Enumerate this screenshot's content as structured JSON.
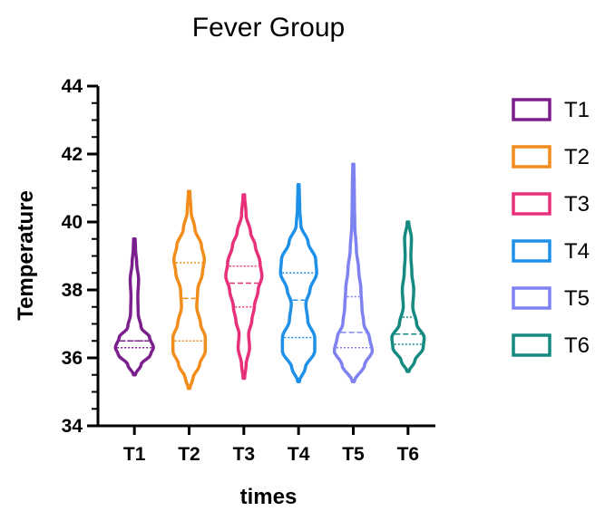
{
  "chart_data": {
    "type": "violin",
    "title": "Fever Group",
    "xlabel": "times",
    "ylabel": "Temperature",
    "ylim": [
      34,
      44
    ],
    "yticks": [
      34,
      36,
      38,
      40,
      42,
      44
    ],
    "y_minor_step": 0.5,
    "categories": [
      "T1",
      "T2",
      "T3",
      "T4",
      "T5",
      "T6"
    ],
    "legend_position": "right",
    "series": [
      {
        "name": "T1",
        "color": "#7B1F8C",
        "min": 35.5,
        "max": 39.5,
        "median": 36.5,
        "q1": 36.3,
        "q3": 36.5,
        "density": [
          [
            35.5,
            0.05
          ],
          [
            35.8,
            0.35
          ],
          [
            36.1,
            0.85
          ],
          [
            36.3,
            1.0
          ],
          [
            36.6,
            0.8
          ],
          [
            36.9,
            0.35
          ],
          [
            37.3,
            0.2
          ],
          [
            37.8,
            0.18
          ],
          [
            38.3,
            0.22
          ],
          [
            38.8,
            0.12
          ],
          [
            39.2,
            0.06
          ],
          [
            39.5,
            0.04
          ]
        ]
      },
      {
        "name": "T2",
        "color": "#F28C1A",
        "min": 35.1,
        "max": 40.9,
        "median": 37.75,
        "q1": 36.5,
        "q3": 38.8,
        "density": [
          [
            35.1,
            0.04
          ],
          [
            35.4,
            0.2
          ],
          [
            35.8,
            0.55
          ],
          [
            36.2,
            0.85
          ],
          [
            36.6,
            0.85
          ],
          [
            37.0,
            0.6
          ],
          [
            37.5,
            0.4
          ],
          [
            38.0,
            0.45
          ],
          [
            38.5,
            0.7
          ],
          [
            38.9,
            0.8
          ],
          [
            39.3,
            0.65
          ],
          [
            39.8,
            0.3
          ],
          [
            40.3,
            0.1
          ],
          [
            40.9,
            0.04
          ]
        ]
      },
      {
        "name": "T3",
        "color": "#E8307A",
        "min": 35.4,
        "max": 40.8,
        "median": 38.2,
        "q1": 37.5,
        "q3": 38.7,
        "density": [
          [
            35.4,
            0.04
          ],
          [
            35.8,
            0.12
          ],
          [
            36.3,
            0.3
          ],
          [
            36.7,
            0.25
          ],
          [
            37.1,
            0.42
          ],
          [
            37.5,
            0.55
          ],
          [
            38.0,
            0.75
          ],
          [
            38.4,
            0.95
          ],
          [
            38.8,
            0.85
          ],
          [
            39.3,
            0.6
          ],
          [
            39.7,
            0.35
          ],
          [
            40.2,
            0.12
          ],
          [
            40.8,
            0.04
          ]
        ]
      },
      {
        "name": "T4",
        "color": "#1E90E8",
        "min": 35.3,
        "max": 41.1,
        "median": 37.7,
        "q1": 36.6,
        "q3": 38.5,
        "density": [
          [
            35.3,
            0.04
          ],
          [
            35.7,
            0.35
          ],
          [
            36.2,
            0.85
          ],
          [
            36.6,
            0.85
          ],
          [
            37.1,
            0.48
          ],
          [
            37.6,
            0.38
          ],
          [
            38.0,
            0.6
          ],
          [
            38.5,
            0.95
          ],
          [
            38.9,
            0.9
          ],
          [
            39.4,
            0.5
          ],
          [
            39.9,
            0.12
          ],
          [
            40.4,
            0.06
          ],
          [
            41.1,
            0.03
          ]
        ]
      },
      {
        "name": "T5",
        "color": "#7E82F0",
        "min": 35.3,
        "max": 41.7,
        "median": 36.75,
        "q1": 36.3,
        "q3": 37.8,
        "density": [
          [
            35.3,
            0.05
          ],
          [
            35.8,
            0.6
          ],
          [
            36.2,
            1.0
          ],
          [
            36.6,
            0.85
          ],
          [
            37.0,
            0.55
          ],
          [
            37.5,
            0.45
          ],
          [
            38.0,
            0.4
          ],
          [
            38.6,
            0.28
          ],
          [
            39.2,
            0.16
          ],
          [
            39.9,
            0.08
          ],
          [
            40.5,
            0.06
          ],
          [
            41.0,
            0.05
          ],
          [
            41.7,
            0.03
          ]
        ]
      },
      {
        "name": "T6",
        "color": "#158A80",
        "min": 35.6,
        "max": 40.0,
        "median": 36.7,
        "q1": 36.4,
        "q3": 37.2,
        "density": [
          [
            35.6,
            0.05
          ],
          [
            35.9,
            0.35
          ],
          [
            36.3,
            0.8
          ],
          [
            36.6,
            0.85
          ],
          [
            37.0,
            0.45
          ],
          [
            37.5,
            0.25
          ],
          [
            38.0,
            0.3
          ],
          [
            38.5,
            0.2
          ],
          [
            39.0,
            0.15
          ],
          [
            39.5,
            0.18
          ],
          [
            40.0,
            0.04
          ]
        ]
      }
    ]
  }
}
